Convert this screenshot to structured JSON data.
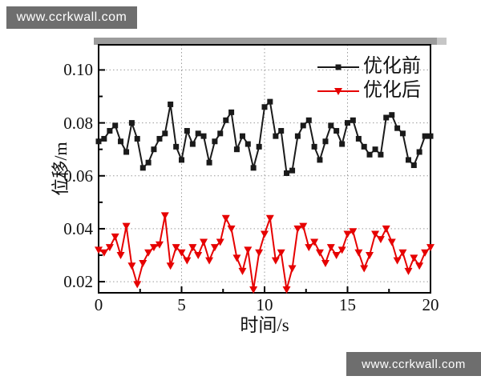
{
  "watermarks": {
    "top_left": "www.ccrkwall.com",
    "bottom_right": "www.ccrkwall.com"
  },
  "chart_data": {
    "type": "line",
    "title": "",
    "xlabel": "时间/s",
    "ylabel": "位移/m",
    "xlim": [
      0,
      20
    ],
    "ylim": [
      0.0158,
      0.1095
    ],
    "x_major_ticks": [
      0,
      5,
      10,
      15,
      20
    ],
    "x_tick_labels": [
      "0",
      "5",
      "10",
      "15",
      "20"
    ],
    "x_minor_ticks": [
      2.5,
      7.5,
      12.5,
      17.5
    ],
    "y_major_ticks": [
      0.02,
      0.04,
      0.06,
      0.08,
      0.1
    ],
    "y_tick_labels": [
      "0.02",
      "0.04",
      "0.06",
      "0.08",
      "0.10"
    ],
    "y_minor_ticks": [
      0.03,
      0.05,
      0.07,
      0.09
    ],
    "grid": {
      "style": "dotted",
      "color": "#9a9a9a",
      "x_lines": [
        5,
        10,
        15
      ],
      "y_lines": [
        0.02,
        0.04,
        0.06,
        0.08,
        0.1
      ]
    },
    "legend_position": "top-right",
    "x": [
      0,
      0.33,
      0.67,
      1,
      1.33,
      1.67,
      2,
      2.33,
      2.67,
      3,
      3.33,
      3.67,
      4,
      4.33,
      4.67,
      5,
      5.33,
      5.67,
      6,
      6.33,
      6.67,
      7,
      7.33,
      7.67,
      8,
      8.33,
      8.67,
      9,
      9.33,
      9.67,
      10,
      10.33,
      10.67,
      11,
      11.33,
      11.67,
      12,
      12.33,
      12.67,
      13,
      13.33,
      13.67,
      14,
      14.33,
      14.67,
      15,
      15.33,
      15.67,
      16,
      16.33,
      16.67,
      17,
      17.33,
      17.67,
      18,
      18.33,
      18.67,
      19,
      19.33,
      19.67,
      20
    ],
    "series": [
      {
        "name": "优化前",
        "color": "#1a1a1a",
        "marker": "square",
        "values": [
          0.073,
          0.074,
          0.077,
          0.079,
          0.073,
          0.069,
          0.08,
          0.074,
          0.063,
          0.065,
          0.07,
          0.074,
          0.076,
          0.087,
          0.071,
          0.066,
          0.077,
          0.072,
          0.076,
          0.075,
          0.065,
          0.073,
          0.076,
          0.081,
          0.084,
          0.07,
          0.075,
          0.072,
          0.063,
          0.071,
          0.086,
          0.088,
          0.075,
          0.077,
          0.061,
          0.062,
          0.075,
          0.079,
          0.081,
          0.071,
          0.066,
          0.073,
          0.079,
          0.077,
          0.072,
          0.08,
          0.081,
          0.074,
          0.071,
          0.068,
          0.07,
          0.068,
          0.082,
          0.083,
          0.078,
          0.076,
          0.066,
          0.064,
          0.069,
          0.075,
          0.075
        ]
      },
      {
        "name": "优化后",
        "color": "#e60000",
        "marker": "triangle-down",
        "values": [
          0.032,
          0.031,
          0.033,
          0.037,
          0.03,
          0.041,
          0.026,
          0.019,
          0.027,
          0.031,
          0.033,
          0.034,
          0.045,
          0.026,
          0.033,
          0.031,
          0.028,
          0.033,
          0.03,
          0.035,
          0.028,
          0.033,
          0.035,
          0.044,
          0.04,
          0.029,
          0.024,
          0.032,
          0.017,
          0.031,
          0.038,
          0.044,
          0.028,
          0.031,
          0.017,
          0.025,
          0.04,
          0.041,
          0.033,
          0.035,
          0.031,
          0.027,
          0.033,
          0.03,
          0.032,
          0.038,
          0.039,
          0.031,
          0.025,
          0.03,
          0.038,
          0.036,
          0.04,
          0.035,
          0.028,
          0.031,
          0.024,
          0.029,
          0.026,
          0.031,
          0.033
        ]
      }
    ]
  }
}
